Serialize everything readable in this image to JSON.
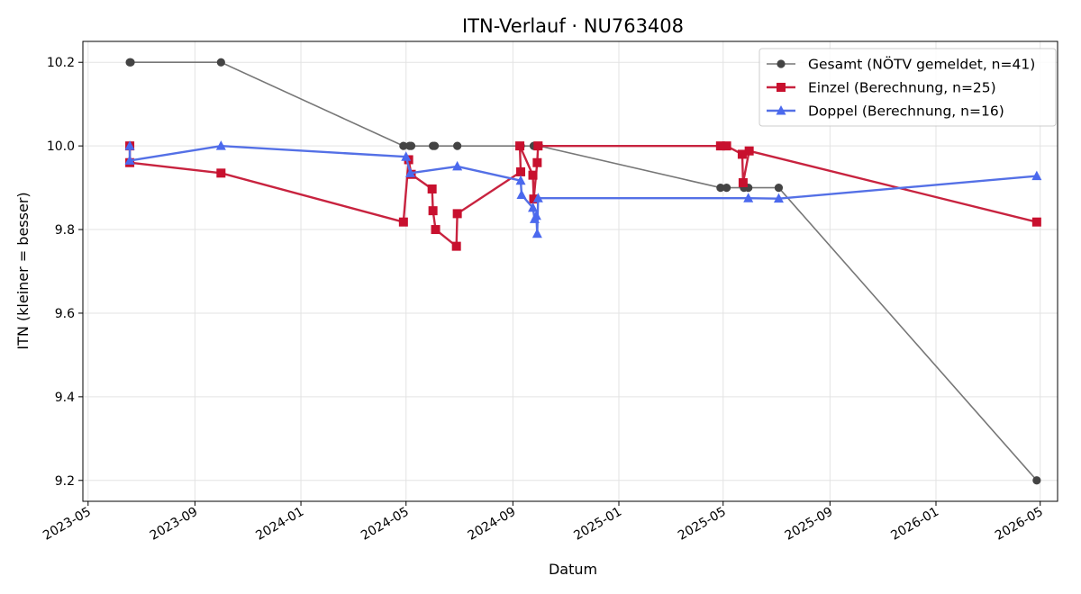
{
  "chart_data": {
    "type": "line",
    "title": "ITN-Verlauf · NU763408",
    "xlabel": "Datum",
    "ylabel": "ITN  (kleiner = besser)",
    "x_type": "date",
    "xlim": [
      "2023-04-25",
      "2026-05-21"
    ],
    "ylim": [
      9.15,
      10.25
    ],
    "yticks": [
      9.2,
      9.4,
      9.6,
      9.8,
      10.0,
      10.2
    ],
    "ytick_labels": [
      "9.2",
      "9.4",
      "9.6",
      "9.8",
      "10.0",
      "10.2"
    ],
    "xticks": [
      "2023-05-01",
      "2023-09-01",
      "2024-01-01",
      "2024-05-01",
      "2024-09-01",
      "2025-01-01",
      "2025-05-01",
      "2025-09-01",
      "2026-01-01",
      "2026-05-01"
    ],
    "xtick_labels": [
      "2023-05",
      "2023-09",
      "2024-01",
      "2024-05",
      "2024-09",
      "2025-01",
      "2025-05",
      "2025-09",
      "2026-01",
      "2026-05"
    ],
    "grid": true,
    "legend_position": "top-right",
    "series": [
      {
        "name": "Gesamt (NÖTV gemeldet, n=41)",
        "color": "#777777",
        "marker_color": "#444444",
        "marker": "circle",
        "points": [
          [
            "2023-06-18",
            10.2
          ],
          [
            "2023-06-19",
            10.2
          ],
          [
            "2023-10-01",
            10.2
          ],
          [
            "2024-04-28",
            10.0
          ],
          [
            "2024-05-05",
            10.0
          ],
          [
            "2024-05-07",
            10.0
          ],
          [
            "2024-06-01",
            10.0
          ],
          [
            "2024-06-03",
            10.0
          ],
          [
            "2024-06-29",
            10.0
          ],
          [
            "2024-09-10",
            10.0
          ],
          [
            "2024-09-25",
            10.0
          ],
          [
            "2024-09-28",
            10.0
          ],
          [
            "2024-10-01",
            10.0
          ],
          [
            "2025-04-28",
            9.9
          ],
          [
            "2025-05-05",
            9.9
          ],
          [
            "2025-05-25",
            9.9
          ],
          [
            "2025-05-30",
            9.9
          ],
          [
            "2025-07-04",
            9.9
          ],
          [
            "2026-04-27",
            9.2
          ]
        ]
      },
      {
        "name": "Einzel (Berechnung, n=25)",
        "color": "#c8233f",
        "marker_color": "#c8102e",
        "marker": "square",
        "points": [
          [
            "2023-06-18",
            10.0
          ],
          [
            "2023-06-18",
            9.96
          ],
          [
            "2023-10-01",
            9.935
          ],
          [
            "2024-04-28",
            9.818
          ],
          [
            "2024-05-04",
            9.967
          ],
          [
            "2024-05-07",
            9.932
          ],
          [
            "2024-05-31",
            9.897
          ],
          [
            "2024-06-01",
            9.845
          ],
          [
            "2024-06-04",
            9.8
          ],
          [
            "2024-06-28",
            9.76
          ],
          [
            "2024-06-29",
            9.838
          ],
          [
            "2024-09-10",
            9.938
          ],
          [
            "2024-09-09",
            10.0
          ],
          [
            "2024-09-24",
            9.93
          ],
          [
            "2024-09-25",
            9.873
          ],
          [
            "2024-09-29",
            9.96
          ],
          [
            "2024-09-30",
            10.0
          ],
          [
            "2025-04-28",
            10.0
          ],
          [
            "2025-05-05",
            10.0
          ],
          [
            "2025-05-23",
            9.98
          ],
          [
            "2025-05-24",
            9.912
          ],
          [
            "2025-05-31",
            9.988
          ],
          [
            "2026-04-27",
            9.818
          ]
        ]
      },
      {
        "name": "Doppel (Berechnung, n=16)",
        "color": "#5470e6",
        "marker_color": "#4b69ee",
        "marker": "triangle",
        "points": [
          [
            "2023-06-18",
            10.0
          ],
          [
            "2023-06-18",
            9.965
          ],
          [
            "2023-10-01",
            10.0
          ],
          [
            "2024-05-01",
            9.974
          ],
          [
            "2024-05-06",
            9.935
          ],
          [
            "2024-06-29",
            9.951
          ],
          [
            "2024-09-10",
            9.917
          ],
          [
            "2024-09-11",
            9.883
          ],
          [
            "2024-09-24",
            9.852
          ],
          [
            "2024-09-26",
            9.825
          ],
          [
            "2024-09-28",
            9.833
          ],
          [
            "2024-09-29",
            9.79
          ],
          [
            "2024-09-30",
            9.875
          ],
          [
            "2025-05-30",
            9.875
          ],
          [
            "2025-07-04",
            9.874
          ],
          [
            "2026-04-27",
            9.928
          ]
        ]
      }
    ]
  }
}
